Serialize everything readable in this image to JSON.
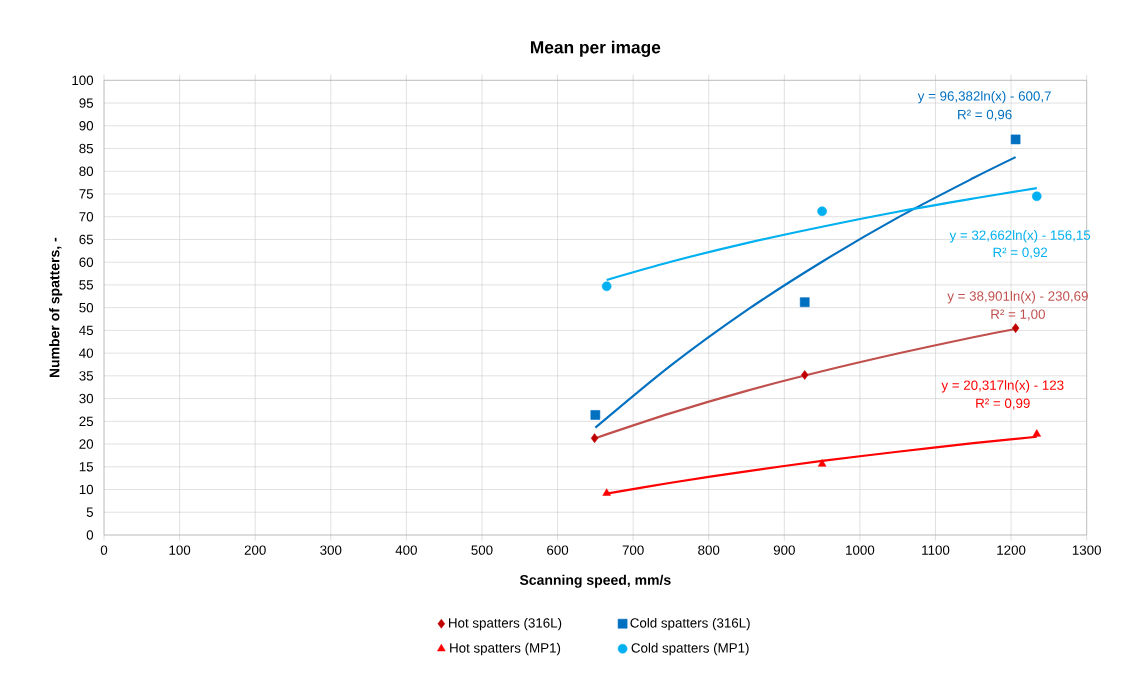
{
  "chart_data": {
    "type": "scatter",
    "title": "Mean per image",
    "xlabel": "Scanning speed, mm/s",
    "ylabel": "Number of spatters, -",
    "xlim": [
      0,
      1300
    ],
    "xticks": [
      0,
      100,
      200,
      300,
      400,
      500,
      600,
      700,
      800,
      900,
      1000,
      1100,
      1200,
      1300
    ],
    "ylim": [
      0,
      100
    ],
    "yticks": [
      0,
      5,
      10,
      15,
      20,
      25,
      30,
      35,
      40,
      45,
      50,
      55,
      60,
      65,
      70,
      75,
      80,
      85,
      90,
      95,
      100
    ],
    "grid": true,
    "legend": "bottom",
    "series": [
      {
        "name": "Hot spatters (316L)",
        "color": "#c00000",
        "marker": "diamond",
        "x": [
          649,
          927,
          1206
        ],
        "values": [
          21.3,
          35.2,
          45.5
        ]
      },
      {
        "name": "Cold spatters (316L)",
        "color": "#0070c0",
        "marker": "square",
        "x": [
          650,
          927,
          1206
        ],
        "values": [
          26.4,
          51.2,
          87
        ]
      },
      {
        "name": "Hot spatters (MP1)",
        "color": "#ff0000",
        "marker": "triangle",
        "x": [
          665,
          950,
          1234
        ],
        "values": [
          9.2,
          15.6,
          22.2
        ]
      },
      {
        "name": "Cold spatters (MP1)",
        "color": "#00b0f0",
        "marker": "circle",
        "x": [
          665,
          950,
          1234
        ],
        "values": [
          54.7,
          71.2,
          74.5
        ]
      },
      {
        "type": "line",
        "color": "#c0504d",
        "x": [
          650,
          750,
          850,
          950,
          1050,
          1150,
          1206
        ],
        "values": [
          21.3,
          26.8,
          31.7,
          36.0,
          39.9,
          43.5,
          45.3
        ]
      },
      {
        "type": "line",
        "color": "#0070c0",
        "x": [
          650,
          750,
          850,
          950,
          1050,
          1150,
          1206
        ],
        "values": [
          23.6,
          37.3,
          49.4,
          60.1,
          69.8,
          78.5,
          83.1
        ]
      },
      {
        "type": "line",
        "color": "#ff0000",
        "x": [
          665,
          750,
          850,
          950,
          1050,
          1150,
          1234
        ],
        "values": [
          9.1,
          11.5,
          14.0,
          16.3,
          18.3,
          20.2,
          21.6
        ]
      },
      {
        "type": "line",
        "color": "#00b0f0",
        "x": [
          665,
          750,
          850,
          950,
          1050,
          1150,
          1234
        ],
        "values": [
          56.1,
          60.1,
          64.2,
          67.8,
          71.1,
          74.0,
          76.3
        ]
      }
    ],
    "annotations": [
      "y = 38,901ln(x) - 230,69",
      "R² = 1,00",
      "y = 96,382ln(x) - 600,7",
      "R² = 0,96",
      "y = 20,317ln(x) - 123",
      "R² = 0,99",
      "y = 32,662ln(x) - 156,15",
      "R² = 0,92"
    ]
  }
}
